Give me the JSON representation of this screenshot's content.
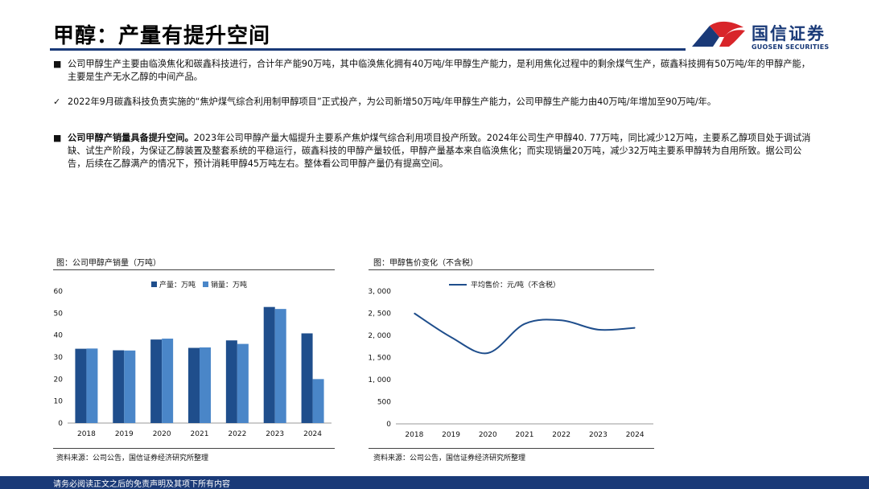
{
  "header": {
    "title": "甲醇：产量有提升空间",
    "logo_name": "国信证券",
    "logo_en": "GUOSEN SECURITIES"
  },
  "paragraphs": [
    {
      "bullet": "■",
      "bold": "",
      "text": "公司甲醇生产主要由临涣焦化和碳鑫科技进行，合计年产能90万吨，其中临涣焦化拥有40万吨/年甲醇生产能力，是利用焦化过程中的剩余煤气生产，碳鑫科技拥有50万吨/年的甲醇产能，主要是生产无水乙醇的中间产品。"
    },
    {
      "bullet": "✓",
      "bold": "",
      "text": "2022年9月碳鑫科技负责实施的“焦炉煤气综合利用制甲醇项目”正式投产，为公司新增50万吨/年甲醇生产能力，公司甲醇生产能力由40万吨/年增加至90万吨/年。"
    },
    {
      "bullet": "■",
      "bold": "公司甲醇产销量具备提升空间。",
      "text": "2023年公司甲醇产量大幅提升主要系产焦炉煤气综合利用项目投产所致。2024年公司生产甲醇40. 77万吨，同比减少12万吨，主要系乙醇项目处于调试消缺、试生产阶段，为保证乙醇装置及整套系统的平稳运行，碳鑫科技的甲醇产量较低，甲醇产量基本来自临涣焦化；而实现销量20万吨，减少32万吨主要系甲醇转为自用所致。据公司公告，后续在乙醇满产的情况下，预计消耗甲醇45万吨左右。整体看公司甲醇产量仍有提高空间。"
    }
  ],
  "charts": {
    "left_title": "图：公司甲醇产销量（万吨）",
    "right_title": "图：甲醇售价变化（不含税）",
    "left_source": "资料来源：公司公告，国信证券经济研究所整理",
    "right_source": "资料来源：公司公告，国信证券经济研究所整理"
  },
  "chart_data": [
    {
      "type": "bar",
      "categories": [
        "2018",
        "2019",
        "2020",
        "2021",
        "2022",
        "2023",
        "2024"
      ],
      "series": [
        {
          "name": "产量：万吨",
          "color": "#1f4e8c",
          "values": [
            33.8,
            33.1,
            38.0,
            34.2,
            37.6,
            52.8,
            40.8
          ]
        },
        {
          "name": "销量：万吨",
          "color": "#4a86c8",
          "values": [
            33.9,
            33.0,
            38.4,
            34.4,
            36.0,
            51.9,
            20.0
          ]
        }
      ],
      "ylim": [
        0,
        60
      ],
      "yticks": [
        "0",
        "10",
        "20",
        "30",
        "40",
        "50",
        "60"
      ],
      "legend": "top"
    },
    {
      "type": "line",
      "categories": [
        "2018",
        "2019",
        "2020",
        "2021",
        "2022",
        "2023",
        "2024"
      ],
      "series": [
        {
          "name": "平均售价：元/吨（不含税）",
          "color": "#1f4e8c",
          "values": [
            2500,
            1960,
            1600,
            2260,
            2340,
            2130,
            2170
          ]
        }
      ],
      "ylim": [
        0,
        3000
      ],
      "yticks": [
        "0",
        "500",
        "1, 000",
        "1, 500",
        "2, 000",
        "2, 500",
        "3, 000"
      ],
      "legend": "top"
    }
  ],
  "footer": {
    "text": "请务必阅读正文之后的免责声明及其项下所有内容"
  }
}
